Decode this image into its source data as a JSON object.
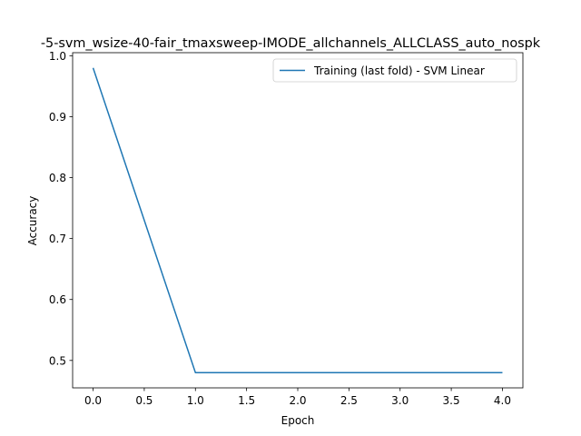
{
  "chart_data": {
    "type": "line",
    "title": "-5-svm_wsize-40-fair_tmaxsweep-IMODE_allchannels_ALLCLASS_auto_nospk",
    "xlabel": "Epoch",
    "ylabel": "Accuracy",
    "xlim": [
      -0.2,
      4.2
    ],
    "ylim": [
      0.455,
      1.005
    ],
    "x_ticks": [
      0.0,
      0.5,
      1.0,
      1.5,
      2.0,
      2.5,
      3.0,
      3.5,
      4.0
    ],
    "x_tick_labels": [
      "0.0",
      "0.5",
      "1.0",
      "1.5",
      "2.0",
      "2.5",
      "3.0",
      "3.5",
      "4.0"
    ],
    "y_ticks": [
      0.5,
      0.6,
      0.7,
      0.8,
      0.9,
      1.0
    ],
    "y_tick_labels": [
      "0.5",
      "0.6",
      "0.7",
      "0.8",
      "0.9",
      "1.0"
    ],
    "grid": false,
    "legend_position": "upper right",
    "series": [
      {
        "name": "Training (last fold) - SVM Linear",
        "color": "#1f77b4",
        "x": [
          0,
          1,
          2,
          3,
          4
        ],
        "y": [
          0.98,
          0.48,
          0.48,
          0.48,
          0.48
        ]
      }
    ]
  }
}
